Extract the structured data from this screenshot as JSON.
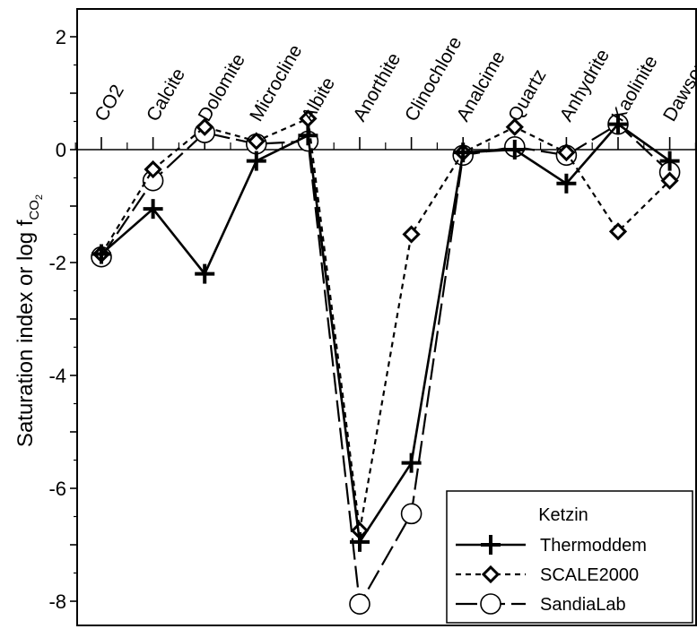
{
  "chart_data": {
    "type": "line",
    "ylabel": "Saturation index or log f",
    "ylabel_sub": "CO",
    "ylabel_sub2": "2",
    "ylim": [
      -8.5,
      2.5
    ],
    "yticks": [
      2,
      0,
      -2,
      -4,
      -6,
      -8
    ],
    "ytick_labels": [
      "2",
      "0",
      "-2",
      "-4",
      "-6",
      "-8"
    ],
    "categories": [
      "CO2",
      "Calcite",
      "Dolomite",
      "Microcline",
      "Albite",
      "Anorthite",
      "Clinochlore",
      "Analcime",
      "Quartz",
      "Anhydrite",
      "Kaolinite",
      "Dawsonite"
    ],
    "legend_title": "Ketzin",
    "legend_position": "bottom-right",
    "reference_line": 0,
    "series": [
      {
        "name": "Thermoddem",
        "marker": "plus",
        "line": "solid",
        "values": [
          -1.85,
          -1.05,
          -2.2,
          -0.2,
          0.25,
          -6.95,
          -5.55,
          -0.05,
          0.0,
          -0.6,
          0.45,
          -0.2
        ]
      },
      {
        "name": "SCALE2000",
        "marker": "diamond",
        "line": "dashed",
        "values": [
          -1.85,
          -0.35,
          0.4,
          0.15,
          0.55,
          -6.75,
          -1.5,
          -0.05,
          0.4,
          -0.05,
          -1.45,
          -0.55
        ]
      },
      {
        "name": "SandiaLab",
        "marker": "circle",
        "line": "longdash",
        "values": [
          -1.9,
          -0.55,
          0.3,
          0.1,
          0.15,
          -8.05,
          -6.45,
          -0.1,
          0.05,
          -0.1,
          0.45,
          -0.4
        ]
      }
    ]
  }
}
